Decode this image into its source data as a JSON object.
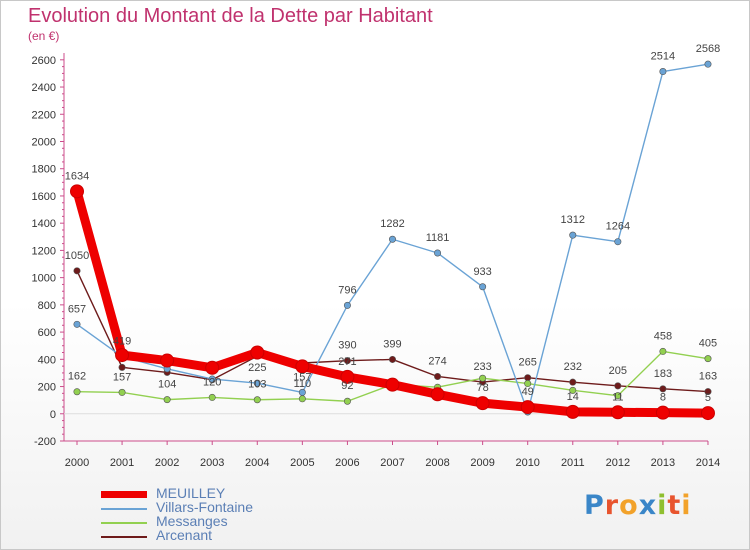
{
  "title": "Evolution du Montant de la Dette par Habitant",
  "subtitle": "(en €)",
  "logo": {
    "text": "Proxiti",
    "colors": [
      "#3a86c8",
      "#e8542e",
      "#f2a22a",
      "#3a86c8",
      "#8fbf2f",
      "#e8542e",
      "#f2a22a"
    ]
  },
  "chart_data": {
    "type": "line",
    "x": [
      2000,
      2001,
      2002,
      2003,
      2004,
      2005,
      2006,
      2007,
      2008,
      2009,
      2010,
      2011,
      2012,
      2013,
      2014
    ],
    "yticks": [
      -200,
      0,
      200,
      400,
      600,
      800,
      1000,
      1200,
      1400,
      1600,
      1800,
      2000,
      2200,
      2400,
      2600
    ],
    "ylim": [
      -200,
      2650
    ],
    "grid": false,
    "legend_position": "bottom-left",
    "series": [
      {
        "name": "MEUILLEY",
        "color": "#ee0000",
        "values": [
          1634,
          431,
          391,
          338,
          450,
          348,
          271,
          214,
          143,
          78,
          49,
          14,
          11,
          8,
          5
        ],
        "labels": [
          "1634",
          "",
          "",
          "",
          "",
          "",
          "271",
          "",
          "",
          "78",
          "49",
          "14",
          "11",
          "8",
          "5"
        ]
      },
      {
        "name": "Villars-Fontaine",
        "color": "#6aa3d5",
        "values": [
          657,
          419,
          330,
          255,
          225,
          157,
          796,
          1282,
          1181,
          933,
          13,
          1312,
          1264,
          2514,
          2568
        ],
        "labels": [
          "657",
          "419",
          "",
          "",
          "225",
          "157",
          "796",
          "1282",
          "1181",
          "933",
          "",
          "1312",
          "1264",
          "2514",
          "2568"
        ]
      },
      {
        "name": "Messanges",
        "color": "#92d050",
        "values": [
          162,
          157,
          104,
          120,
          103,
          110,
          92,
          215,
          195,
          261,
          222,
          172,
          133,
          458,
          405
        ],
        "labels": [
          "162",
          "157",
          "104",
          "120",
          "103",
          "110",
          "92",
          "",
          "",
          "",
          "",
          "",
          "",
          "458",
          "405"
        ]
      },
      {
        "name": "Arcenant",
        "color": "#6e1b1b",
        "values": [
          1050,
          341,
          304,
          250,
          423,
          373,
          390,
          399,
          274,
          233,
          265,
          232,
          205,
          183,
          163
        ],
        "labels": [
          "1050",
          "",
          "",
          "",
          "",
          "",
          "390",
          "399",
          "274",
          "233",
          "265",
          "232",
          "205",
          "183",
          "163"
        ]
      }
    ]
  }
}
